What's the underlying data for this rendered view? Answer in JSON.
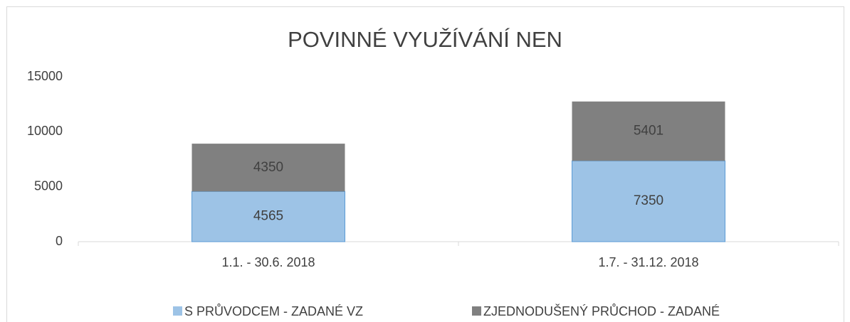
{
  "chart_data": {
    "type": "stacked_bar",
    "title": "POVINNÉ VYUŽÍVÁNÍ NEN",
    "categories": [
      "1.1. - 30.6. 2018",
      "1.7. - 31.12. 2018"
    ],
    "series": [
      {
        "name": "S PRŮVODCEM - ZADANÉ VZ",
        "color": "#9dc3e6",
        "values": [
          4565,
          7350
        ]
      },
      {
        "name": "ZJEDNODUŠENÝ PRŮCHOD - ZADANÉ",
        "color": "#808080",
        "values": [
          4350,
          5401
        ]
      }
    ],
    "ylim": [
      0,
      15000
    ],
    "yticks": [
      0,
      5000,
      10000,
      15000
    ],
    "legend": "bottom"
  }
}
